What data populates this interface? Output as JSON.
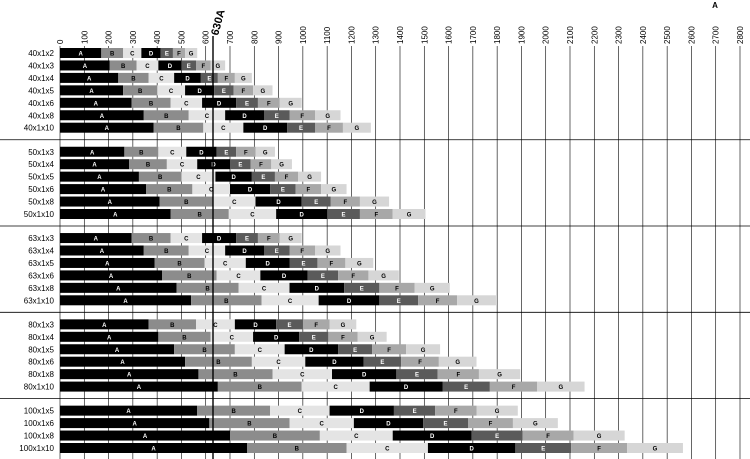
{
  "chart_data": {
    "type": "stacked-barh",
    "xlabel": "A",
    "annotations": [
      {
        "text": "630A",
        "x": 630
      }
    ],
    "xlim": [
      0,
      2800
    ],
    "xticks": [
      0,
      100,
      200,
      300,
      400,
      500,
      600,
      700,
      800,
      900,
      1000,
      1100,
      1200,
      1300,
      1400,
      1500,
      1600,
      1700,
      1800,
      1900,
      2000,
      2100,
      2200,
      2300,
      2400,
      2500,
      2600,
      2700,
      2800
    ],
    "grid": true,
    "categories": [
      "40x1x2",
      "40x1x3",
      "40x1x4",
      "40x1x5",
      "40x1x6",
      "40x1x8",
      "40x1x10",
      "50x1x3",
      "50x1x4",
      "50x1x5",
      "50x1x6",
      "50x1x8",
      "50x1x10",
      "63x1x3",
      "63x1x4",
      "63x1x5",
      "63x1x6",
      "63x1x8",
      "63x1x10",
      "80x1x3",
      "80x1x4",
      "80x1x5",
      "80x1x6",
      "80x1x8",
      "80x1x10",
      "100x1x5",
      "100x1x6",
      "100x1x8",
      "100x1x10"
    ],
    "series": [
      {
        "name": "A",
        "color": "#000000",
        "values": [
          170,
          205,
          240,
          260,
          295,
          345,
          385,
          265,
          285,
          325,
          355,
          410,
          455,
          295,
          345,
          390,
          420,
          480,
          540,
          365,
          405,
          470,
          515,
          570,
          650,
          565,
          615,
          700,
          770
        ]
      },
      {
        "name": "B",
        "color": "#8c8c8c",
        "values": [
          90,
          110,
          125,
          140,
          160,
          185,
          205,
          140,
          155,
          175,
          190,
          220,
          240,
          160,
          185,
          205,
          225,
          255,
          290,
          195,
          215,
          250,
          275,
          305,
          345,
          300,
          330,
          370,
          410
        ]
      },
      {
        "name": "C",
        "color": "#e4e4e4",
        "values": [
          75,
          90,
          105,
          115,
          130,
          150,
          165,
          115,
          125,
          140,
          155,
          175,
          195,
          130,
          150,
          170,
          180,
          210,
          235,
          160,
          175,
          205,
          220,
          245,
          280,
          245,
          265,
          300,
          335
        ]
      },
      {
        "name": "D",
        "color": "#000000",
        "values": [
          80,
          95,
          110,
          120,
          140,
          160,
          180,
          125,
          135,
          150,
          165,
          190,
          210,
          140,
          160,
          180,
          195,
          225,
          250,
          170,
          190,
          220,
          240,
          265,
          300,
          265,
          285,
          325,
          360
        ]
      },
      {
        "name": "E",
        "color": "#5a5a5a",
        "values": [
          50,
          60,
          70,
          80,
          90,
          105,
          115,
          80,
          85,
          95,
          105,
          120,
          135,
          90,
          105,
          115,
          125,
          145,
          160,
          110,
          120,
          140,
          155,
          170,
          195,
          170,
          185,
          210,
          230
        ]
      },
      {
        "name": "F",
        "color": "#a8a8a8",
        "values": [
          50,
          60,
          70,
          80,
          90,
          105,
          115,
          80,
          85,
          95,
          105,
          120,
          135,
          90,
          105,
          115,
          125,
          145,
          160,
          110,
          120,
          140,
          155,
          170,
          195,
          170,
          185,
          210,
          230
        ]
      },
      {
        "name": "G",
        "color": "#d6d6d6",
        "values": [
          50,
          60,
          70,
          80,
          90,
          105,
          115,
          80,
          85,
          95,
          105,
          120,
          135,
          90,
          105,
          115,
          125,
          145,
          160,
          110,
          120,
          140,
          155,
          170,
          195,
          170,
          185,
          210,
          230
        ]
      }
    ]
  }
}
